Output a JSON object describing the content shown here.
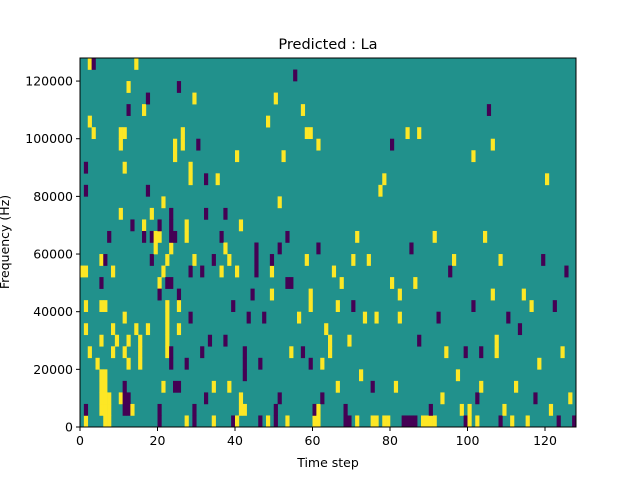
{
  "figure": {
    "background": "#ffffff"
  },
  "chart_data": {
    "type": "heatmap",
    "title": "Predicted : La",
    "xlabel": "Time step",
    "ylabel": "Frequency (Hz)",
    "xlim": [
      0,
      128
    ],
    "ylim": [
      0,
      128000
    ],
    "x_ticks": [
      0,
      20,
      40,
      60,
      80,
      100,
      120
    ],
    "y_ticks": [
      0,
      20000,
      40000,
      60000,
      80000,
      100000,
      120000
    ],
    "grid": false,
    "colors": {
      "background_value": "#21918c",
      "high_value": "#fde725",
      "low_value": "#440154"
    },
    "columns": 128,
    "rows": 32,
    "cells": [
      {
        "c": 1,
        "r": 0,
        "v": 1
      },
      {
        "c": 1,
        "r": 1,
        "v": -1
      },
      {
        "c": 2,
        "r": 31,
        "v": 1
      },
      {
        "c": 3,
        "r": 31,
        "v": -1
      },
      {
        "c": 1,
        "r": 22,
        "v": -1
      },
      {
        "c": 1,
        "r": 20,
        "v": -1
      },
      {
        "c": 2,
        "r": 26,
        "v": 1
      },
      {
        "c": 3,
        "r": 25,
        "v": 1
      },
      {
        "c": 0,
        "r": 13,
        "v": 1
      },
      {
        "c": 1,
        "r": 13,
        "v": 1
      },
      {
        "c": 1,
        "r": 10,
        "v": 1
      },
      {
        "c": 1,
        "r": 8,
        "v": 1
      },
      {
        "c": 2,
        "r": 6,
        "v": 1
      },
      {
        "c": 4,
        "r": 5,
        "v": 1
      },
      {
        "c": 5,
        "r": 1,
        "v": 1
      },
      {
        "c": 5,
        "r": 2,
        "v": 1
      },
      {
        "c": 5,
        "r": 3,
        "v": 1
      },
      {
        "c": 5,
        "r": 4,
        "v": 1
      },
      {
        "c": 6,
        "r": 1,
        "v": 1
      },
      {
        "c": 6,
        "r": 2,
        "v": 1
      },
      {
        "c": 6,
        "r": 3,
        "v": 1
      },
      {
        "c": 6,
        "r": 4,
        "v": 1
      },
      {
        "c": 6,
        "r": 0,
        "v": 1
      },
      {
        "c": 7,
        "r": 0,
        "v": 1
      },
      {
        "c": 7,
        "r": 1,
        "v": 1
      },
      {
        "c": 7,
        "r": 2,
        "v": 1
      },
      {
        "c": 5,
        "r": 7,
        "v": 1
      },
      {
        "c": 5,
        "r": 12,
        "v": -1
      },
      {
        "c": 5,
        "r": 14,
        "v": 1
      },
      {
        "c": 6,
        "r": 14,
        "v": -1
      },
      {
        "c": 5,
        "r": 10,
        "v": 1
      },
      {
        "c": 6,
        "r": 10,
        "v": 1
      },
      {
        "c": 7,
        "r": 16,
        "v": -1
      },
      {
        "c": 8,
        "r": 13,
        "v": 1
      },
      {
        "c": 8,
        "r": 8,
        "v": 1
      },
      {
        "c": 8,
        "r": 6,
        "v": 1
      },
      {
        "c": 9,
        "r": 7,
        "v": 1
      },
      {
        "c": 10,
        "r": 2,
        "v": 1
      },
      {
        "c": 10,
        "r": 18,
        "v": 1
      },
      {
        "c": 10,
        "r": 24,
        "v": 1
      },
      {
        "c": 10,
        "r": 25,
        "v": 1
      },
      {
        "c": 11,
        "r": 25,
        "v": 1
      },
      {
        "c": 11,
        "r": 1,
        "v": -1
      },
      {
        "c": 12,
        "r": 1,
        "v": -1
      },
      {
        "c": 11,
        "r": 2,
        "v": -1
      },
      {
        "c": 12,
        "r": 2,
        "v": -1
      },
      {
        "c": 11,
        "r": 3,
        "v": -1
      },
      {
        "c": 11,
        "r": 9,
        "v": 1
      },
      {
        "c": 11,
        "r": 6,
        "v": 1
      },
      {
        "c": 11,
        "r": 22,
        "v": 1
      },
      {
        "c": 12,
        "r": 5,
        "v": 1
      },
      {
        "c": 12,
        "r": 7,
        "v": 1
      },
      {
        "c": 12,
        "r": 27,
        "v": -1
      },
      {
        "c": 12,
        "r": 29,
        "v": 1
      },
      {
        "c": 13,
        "r": 17,
        "v": -1
      },
      {
        "c": 13,
        "r": 1,
        "v": 1
      },
      {
        "c": 14,
        "r": 8,
        "v": 1
      },
      {
        "c": 14,
        "r": 31,
        "v": 1
      },
      {
        "c": 15,
        "r": 7,
        "v": 1
      },
      {
        "c": 15,
        "r": 5,
        "v": 1
      },
      {
        "c": 15,
        "r": 6,
        "v": 1
      },
      {
        "c": 16,
        "r": 17,
        "v": 1
      },
      {
        "c": 16,
        "r": 16,
        "v": -1
      },
      {
        "c": 16,
        "r": 27,
        "v": 1
      },
      {
        "c": 17,
        "r": 8,
        "v": 1
      },
      {
        "c": 17,
        "r": 20,
        "v": -1
      },
      {
        "c": 17,
        "r": 28,
        "v": -1
      },
      {
        "c": 18,
        "r": 14,
        "v": -1
      },
      {
        "c": 18,
        "r": 16,
        "v": -1
      },
      {
        "c": 18,
        "r": 18,
        "v": 1
      },
      {
        "c": 19,
        "r": 16,
        "v": 1
      },
      {
        "c": 19,
        "r": 15,
        "v": 1
      },
      {
        "c": 20,
        "r": 12,
        "v": 1
      },
      {
        "c": 20,
        "r": 0,
        "v": -1
      },
      {
        "c": 20,
        "r": 1,
        "v": -1
      },
      {
        "c": 20,
        "r": 11,
        "v": -1
      },
      {
        "c": 20,
        "r": 16,
        "v": 1
      },
      {
        "c": 20,
        "r": 17,
        "v": -1
      },
      {
        "c": 21,
        "r": 19,
        "v": 1
      },
      {
        "c": 21,
        "r": 13,
        "v": 1
      },
      {
        "c": 21,
        "r": 3,
        "v": 1
      },
      {
        "c": 22,
        "r": 6,
        "v": 1
      },
      {
        "c": 22,
        "r": 7,
        "v": 1
      },
      {
        "c": 22,
        "r": 8,
        "v": 1
      },
      {
        "c": 22,
        "r": 9,
        "v": 1
      },
      {
        "c": 22,
        "r": 10,
        "v": 1
      },
      {
        "c": 22,
        "r": 14,
        "v": 1
      },
      {
        "c": 23,
        "r": 15,
        "v": 1
      },
      {
        "c": 23,
        "r": 16,
        "v": -1
      },
      {
        "c": 24,
        "r": 16,
        "v": -1
      },
      {
        "c": 23,
        "r": 17,
        "v": -1
      },
      {
        "c": 23,
        "r": 18,
        "v": -1
      },
      {
        "c": 23,
        "r": 5,
        "v": -1
      },
      {
        "c": 23,
        "r": 6,
        "v": -1
      },
      {
        "c": 22,
        "r": 12,
        "v": -1
      },
      {
        "c": 23,
        "r": 12,
        "v": -1
      },
      {
        "c": 24,
        "r": 3,
        "v": -1
      },
      {
        "c": 25,
        "r": 3,
        "v": -1
      },
      {
        "c": 24,
        "r": 23,
        "v": 1
      },
      {
        "c": 24,
        "r": 24,
        "v": 1
      },
      {
        "c": 25,
        "r": 11,
        "v": -1
      },
      {
        "c": 25,
        "r": 10,
        "v": 1
      },
      {
        "c": 25,
        "r": 8,
        "v": 1
      },
      {
        "c": 25,
        "r": 29,
        "v": -1
      },
      {
        "c": 26,
        "r": 24,
        "v": 1
      },
      {
        "c": 26,
        "r": 25,
        "v": 1
      },
      {
        "c": 27,
        "r": 16,
        "v": 1
      },
      {
        "c": 27,
        "r": 17,
        "v": 1
      },
      {
        "c": 27,
        "r": 5,
        "v": -1
      },
      {
        "c": 27,
        "r": 0,
        "v": 1
      },
      {
        "c": 28,
        "r": 13,
        "v": -1
      },
      {
        "c": 28,
        "r": 9,
        "v": -1
      },
      {
        "c": 28,
        "r": 21,
        "v": 1
      },
      {
        "c": 28,
        "r": 22,
        "v": 1
      },
      {
        "c": 29,
        "r": 1,
        "v": -1
      },
      {
        "c": 29,
        "r": 0,
        "v": -1
      },
      {
        "c": 29,
        "r": 14,
        "v": 1
      },
      {
        "c": 29,
        "r": 28,
        "v": 1
      },
      {
        "c": 30,
        "r": 24,
        "v": -1
      },
      {
        "c": 31,
        "r": 13,
        "v": -1
      },
      {
        "c": 31,
        "r": 6,
        "v": -1
      },
      {
        "c": 32,
        "r": 2,
        "v": -1
      },
      {
        "c": 32,
        "r": 18,
        "v": -1
      },
      {
        "c": 32,
        "r": 21,
        "v": -1
      },
      {
        "c": 33,
        "r": 7,
        "v": -1
      },
      {
        "c": 34,
        "r": 14,
        "v": -1
      },
      {
        "c": 34,
        "r": 0,
        "v": 1
      },
      {
        "c": 34,
        "r": 3,
        "v": 1
      },
      {
        "c": 35,
        "r": 21,
        "v": 1
      },
      {
        "c": 36,
        "r": 13,
        "v": 1
      },
      {
        "c": 36,
        "r": 16,
        "v": -1
      },
      {
        "c": 37,
        "r": 7,
        "v": -1
      },
      {
        "c": 37,
        "r": 15,
        "v": 1
      },
      {
        "c": 37,
        "r": 18,
        "v": -1
      },
      {
        "c": 38,
        "r": 3,
        "v": 1
      },
      {
        "c": 38,
        "r": 14,
        "v": 1
      },
      {
        "c": 39,
        "r": 0,
        "v": -1
      },
      {
        "c": 39,
        "r": 10,
        "v": -1
      },
      {
        "c": 40,
        "r": 0,
        "v": 1
      },
      {
        "c": 40,
        "r": 13,
        "v": 1
      },
      {
        "c": 40,
        "r": 23,
        "v": 1
      },
      {
        "c": 41,
        "r": 17,
        "v": 1
      },
      {
        "c": 41,
        "r": 1,
        "v": 1
      },
      {
        "c": 41,
        "r": 2,
        "v": 1
      },
      {
        "c": 42,
        "r": 1,
        "v": 1
      },
      {
        "c": 42,
        "r": 4,
        "v": -1
      },
      {
        "c": 42,
        "r": 5,
        "v": -1
      },
      {
        "c": 42,
        "r": 6,
        "v": -1
      },
      {
        "c": 43,
        "r": 9,
        "v": -1
      },
      {
        "c": 44,
        "r": 11,
        "v": -1
      },
      {
        "c": 45,
        "r": 13,
        "v": -1
      },
      {
        "c": 45,
        "r": 14,
        "v": -1
      },
      {
        "c": 45,
        "r": 15,
        "v": -1
      },
      {
        "c": 46,
        "r": 5,
        "v": -1
      },
      {
        "c": 46,
        "r": 0,
        "v": -1
      },
      {
        "c": 47,
        "r": 9,
        "v": -1
      },
      {
        "c": 48,
        "r": 0,
        "v": 1
      },
      {
        "c": 48,
        "r": 26,
        "v": 1
      },
      {
        "c": 49,
        "r": 13,
        "v": 1
      },
      {
        "c": 49,
        "r": 11,
        "v": 1
      },
      {
        "c": 49,
        "r": 14,
        "v": -1
      },
      {
        "c": 50,
        "r": 0,
        "v": -1
      },
      {
        "c": 50,
        "r": 1,
        "v": -1
      },
      {
        "c": 50,
        "r": 28,
        "v": 1
      },
      {
        "c": 51,
        "r": 15,
        "v": -1
      },
      {
        "c": 51,
        "r": 2,
        "v": -1
      },
      {
        "c": 51,
        "r": 19,
        "v": 1
      },
      {
        "c": 52,
        "r": 23,
        "v": 1
      },
      {
        "c": 53,
        "r": 16,
        "v": -1
      },
      {
        "c": 53,
        "r": 0,
        "v": 1
      },
      {
        "c": 53,
        "r": 12,
        "v": -1
      },
      {
        "c": 54,
        "r": 12,
        "v": -1
      },
      {
        "c": 54,
        "r": 6,
        "v": 1
      },
      {
        "c": 55,
        "r": 30,
        "v": -1
      },
      {
        "c": 56,
        "r": 9,
        "v": 1
      },
      {
        "c": 57,
        "r": 27,
        "v": 1
      },
      {
        "c": 57,
        "r": 6,
        "v": -1
      },
      {
        "c": 58,
        "r": 25,
        "v": 1
      },
      {
        "c": 58,
        "r": 14,
        "v": 1
      },
      {
        "c": 59,
        "r": 25,
        "v": 1
      },
      {
        "c": 59,
        "r": 11,
        "v": 1
      },
      {
        "c": 59,
        "r": 5,
        "v": -1
      },
      {
        "c": 59,
        "r": 10,
        "v": 1
      },
      {
        "c": 60,
        "r": 0,
        "v": 1
      },
      {
        "c": 60,
        "r": 1,
        "v": -1
      },
      {
        "c": 61,
        "r": 0,
        "v": 1
      },
      {
        "c": 61,
        "r": 1,
        "v": 1
      },
      {
        "c": 61,
        "r": 15,
        "v": -1
      },
      {
        "c": 61,
        "r": 24,
        "v": 1
      },
      {
        "c": 62,
        "r": 5,
        "v": 1
      },
      {
        "c": 62,
        "r": 2,
        "v": -1
      },
      {
        "c": 63,
        "r": 8,
        "v": 1
      },
      {
        "c": 64,
        "r": 7,
        "v": 1
      },
      {
        "c": 64,
        "r": 6,
        "v": 1
      },
      {
        "c": 65,
        "r": 13,
        "v": 1
      },
      {
        "c": 66,
        "r": 10,
        "v": 1
      },
      {
        "c": 66,
        "r": 3,
        "v": 1
      },
      {
        "c": 67,
        "r": 12,
        "v": 1
      },
      {
        "c": 68,
        "r": 0,
        "v": -1
      },
      {
        "c": 69,
        "r": 0,
        "v": -1
      },
      {
        "c": 68,
        "r": 1,
        "v": -1
      },
      {
        "c": 69,
        "r": 7,
        "v": 1
      },
      {
        "c": 70,
        "r": 14,
        "v": 1
      },
      {
        "c": 70,
        "r": 10,
        "v": -1
      },
      {
        "c": 71,
        "r": 0,
        "v": 1
      },
      {
        "c": 71,
        "r": 16,
        "v": 1
      },
      {
        "c": 72,
        "r": 4,
        "v": 1
      },
      {
        "c": 73,
        "r": 9,
        "v": 1
      },
      {
        "c": 74,
        "r": 14,
        "v": 1
      },
      {
        "c": 75,
        "r": 3,
        "v": -1
      },
      {
        "c": 75,
        "r": 0,
        "v": 1
      },
      {
        "c": 76,
        "r": 0,
        "v": 1
      },
      {
        "c": 76,
        "r": 9,
        "v": 1
      },
      {
        "c": 77,
        "r": 20,
        "v": 1
      },
      {
        "c": 78,
        "r": 21,
        "v": 1
      },
      {
        "c": 78,
        "r": 0,
        "v": 1
      },
      {
        "c": 79,
        "r": 0,
        "v": 1
      },
      {
        "c": 80,
        "r": 12,
        "v": 1
      },
      {
        "c": 80,
        "r": 24,
        "v": -1
      },
      {
        "c": 81,
        "r": 3,
        "v": 1
      },
      {
        "c": 82,
        "r": 9,
        "v": 1
      },
      {
        "c": 82,
        "r": 11,
        "v": 1
      },
      {
        "c": 83,
        "r": 0,
        "v": -1
      },
      {
        "c": 84,
        "r": 0,
        "v": -1
      },
      {
        "c": 85,
        "r": 0,
        "v": -1
      },
      {
        "c": 86,
        "r": 0,
        "v": -1
      },
      {
        "c": 84,
        "r": 25,
        "v": 1
      },
      {
        "c": 85,
        "r": 15,
        "v": -1
      },
      {
        "c": 86,
        "r": 12,
        "v": 1
      },
      {
        "c": 87,
        "r": 7,
        "v": -1
      },
      {
        "c": 87,
        "r": 25,
        "v": 1
      },
      {
        "c": 88,
        "r": 0,
        "v": 1
      },
      {
        "c": 89,
        "r": 0,
        "v": 1
      },
      {
        "c": 90,
        "r": 0,
        "v": 1
      },
      {
        "c": 91,
        "r": 0,
        "v": 1
      },
      {
        "c": 90,
        "r": 1,
        "v": -1
      },
      {
        "c": 91,
        "r": 16,
        "v": 1
      },
      {
        "c": 92,
        "r": 9,
        "v": -1
      },
      {
        "c": 93,
        "r": 2,
        "v": 1
      },
      {
        "c": 94,
        "r": 6,
        "v": 1
      },
      {
        "c": 95,
        "r": 13,
        "v": -1
      },
      {
        "c": 96,
        "r": 14,
        "v": 1
      },
      {
        "c": 97,
        "r": 4,
        "v": 1
      },
      {
        "c": 98,
        "r": 1,
        "v": 1
      },
      {
        "c": 99,
        "r": 0,
        "v": -1
      },
      {
        "c": 99,
        "r": 6,
        "v": -1
      },
      {
        "c": 100,
        "r": 0,
        "v": 1
      },
      {
        "c": 100,
        "r": 1,
        "v": 1
      },
      {
        "c": 101,
        "r": 10,
        "v": -1
      },
      {
        "c": 101,
        "r": 23,
        "v": 1
      },
      {
        "c": 102,
        "r": 2,
        "v": -1
      },
      {
        "c": 102,
        "r": 0,
        "v": 1
      },
      {
        "c": 103,
        "r": 3,
        "v": 1
      },
      {
        "c": 103,
        "r": 6,
        "v": -1
      },
      {
        "c": 104,
        "r": 16,
        "v": 1
      },
      {
        "c": 105,
        "r": 27,
        "v": -1
      },
      {
        "c": 106,
        "r": 11,
        "v": 1
      },
      {
        "c": 106,
        "r": 24,
        "v": 1
      },
      {
        "c": 107,
        "r": 6,
        "v": 1
      },
      {
        "c": 107,
        "r": 7,
        "v": 1
      },
      {
        "c": 108,
        "r": 0,
        "v": -1
      },
      {
        "c": 108,
        "r": 14,
        "v": 1
      },
      {
        "c": 109,
        "r": 1,
        "v": 1
      },
      {
        "c": 110,
        "r": 9,
        "v": -1
      },
      {
        "c": 111,
        "r": 0,
        "v": 1
      },
      {
        "c": 112,
        "r": 3,
        "v": 1
      },
      {
        "c": 113,
        "r": 8,
        "v": -1
      },
      {
        "c": 114,
        "r": 11,
        "v": 1
      },
      {
        "c": 115,
        "r": 0,
        "v": 1
      },
      {
        "c": 116,
        "r": 10,
        "v": 1
      },
      {
        "c": 117,
        "r": 2,
        "v": -1
      },
      {
        "c": 118,
        "r": 5,
        "v": 1
      },
      {
        "c": 119,
        "r": 14,
        "v": -1
      },
      {
        "c": 120,
        "r": 21,
        "v": 1
      },
      {
        "c": 121,
        "r": 1,
        "v": 1
      },
      {
        "c": 122,
        "r": 10,
        "v": -1
      },
      {
        "c": 123,
        "r": 0,
        "v": -1
      },
      {
        "c": 124,
        "r": 6,
        "v": 1
      },
      {
        "c": 125,
        "r": 13,
        "v": -1
      },
      {
        "c": 126,
        "r": 2,
        "v": 1
      },
      {
        "c": 127,
        "r": 0,
        "v": -1
      }
    ]
  }
}
